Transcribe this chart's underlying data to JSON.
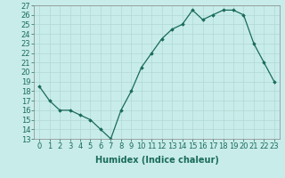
{
  "x": [
    0,
    1,
    2,
    3,
    4,
    5,
    6,
    7,
    8,
    9,
    10,
    11,
    12,
    13,
    14,
    15,
    16,
    17,
    18,
    19,
    20,
    21,
    22,
    23
  ],
  "y": [
    18.5,
    17.0,
    16.0,
    16.0,
    15.5,
    15.0,
    14.0,
    13.0,
    16.0,
    18.0,
    20.5,
    22.0,
    23.5,
    24.5,
    25.0,
    26.5,
    25.5,
    26.0,
    26.5,
    26.5,
    26.0,
    23.0,
    21.0,
    19.0
  ],
  "xlabel": "Humidex (Indice chaleur)",
  "xlim": [
    -0.5,
    23.5
  ],
  "ylim": [
    13,
    27
  ],
  "yticks": [
    13,
    14,
    15,
    16,
    17,
    18,
    19,
    20,
    21,
    22,
    23,
    24,
    25,
    26,
    27
  ],
  "xticks": [
    0,
    1,
    2,
    3,
    4,
    5,
    6,
    7,
    8,
    9,
    10,
    11,
    12,
    13,
    14,
    15,
    16,
    17,
    18,
    19,
    20,
    21,
    22,
    23
  ],
  "line_color": "#1a6b5a",
  "marker_color": "#1a6b5a",
  "bg_color": "#c8ecea",
  "grid_color": "#b0d8d4",
  "xlabel_fontsize": 7,
  "tick_fontsize": 6
}
